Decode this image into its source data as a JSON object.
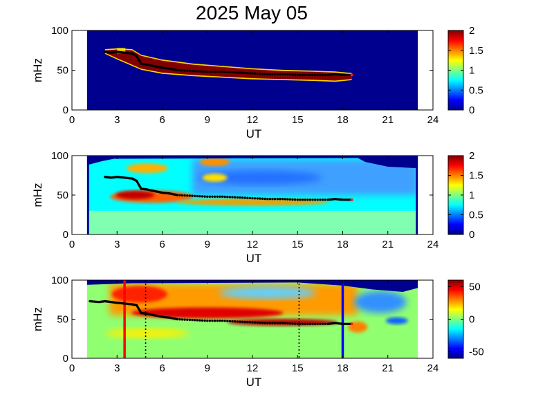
{
  "figure": {
    "title": "2025 May 05"
  },
  "chart_data": [
    {
      "type": "heatmap",
      "panel": "top",
      "xlabel": "UT",
      "ylabel": "mHz",
      "xlim": [
        0,
        24
      ],
      "ylim": [
        0,
        100
      ],
      "xticks": [
        "0",
        "3",
        "6",
        "9",
        "12",
        "15",
        "18",
        "21",
        "24"
      ],
      "yticks": [
        "0",
        "50",
        "100"
      ],
      "data_x_range": [
        1.0,
        23.0
      ],
      "colorbar": {
        "range": [
          0,
          2
        ],
        "ticks": [
          "0",
          "0.5",
          "1",
          "1.5",
          "2"
        ]
      },
      "band": {
        "description_points_x": [
          2.2,
          3.0,
          4.0,
          4.6,
          6.0,
          8.0,
          10.0,
          12.0,
          14.0,
          16.0,
          17.5,
          18.6
        ],
        "upper": [
          75,
          76,
          75,
          68,
          62,
          57,
          54,
          51,
          49,
          48,
          47,
          45
        ],
        "lower": [
          72,
          65,
          57,
          52,
          47,
          44,
          42,
          40,
          39,
          38,
          37,
          39
        ]
      },
      "trace": {
        "x": [
          2.2,
          2.6,
          3.0,
          3.5,
          4.0,
          4.3,
          4.6,
          5.0,
          5.5,
          6.0,
          6.5,
          7.0,
          8.0,
          9.0,
          10.0,
          11.0,
          12.0,
          13.0,
          14.0,
          15.0,
          16.0,
          17.0,
          17.5,
          18.0,
          18.6
        ],
        "y": [
          73,
          72,
          73,
          72,
          71,
          68,
          58,
          57,
          55,
          53,
          52,
          50,
          49,
          48,
          48,
          47,
          46,
          45,
          45,
          44,
          44,
          44,
          45,
          44,
          44
        ]
      }
    },
    {
      "type": "heatmap",
      "panel": "middle",
      "xlabel": "UT",
      "ylabel": "mHz",
      "xlim": [
        0,
        24
      ],
      "ylim": [
        0,
        100
      ],
      "xticks": [
        "0",
        "3",
        "6",
        "9",
        "12",
        "15",
        "18",
        "21",
        "24"
      ],
      "yticks": [
        "0",
        "50",
        "100"
      ],
      "data_x_range": [
        1.0,
        23.0
      ],
      "colorbar": {
        "range": [
          0,
          2
        ],
        "ticks": [
          "0",
          "0.5",
          "1",
          "1.5",
          "2"
        ]
      },
      "trace": {
        "x": [
          2.2,
          2.6,
          3.0,
          3.5,
          4.0,
          4.3,
          4.6,
          5.0,
          5.5,
          6.0,
          6.5,
          7.0,
          8.0,
          9.0,
          10.0,
          11.0,
          12.0,
          13.0,
          14.0,
          15.0,
          16.0,
          17.0,
          17.5,
          18.0,
          18.6
        ],
        "y": [
          73,
          72,
          73,
          72,
          71,
          68,
          58,
          57,
          55,
          53,
          52,
          50,
          49,
          48,
          48,
          47,
          46,
          45,
          45,
          44,
          44,
          44,
          45,
          44,
          44
        ]
      }
    },
    {
      "type": "heatmap",
      "panel": "bottom",
      "xlabel": "UT",
      "ylabel": "mHz",
      "xlim": [
        0,
        24
      ],
      "ylim": [
        0,
        100
      ],
      "xticks": [
        "0",
        "3",
        "6",
        "9",
        "12",
        "15",
        "18",
        "21",
        "24"
      ],
      "yticks": [
        "0",
        "50",
        "100"
      ],
      "data_x_range": [
        1.0,
        23.0
      ],
      "colorbar": {
        "range": [
          -60,
          60
        ],
        "ticks": [
          "50",
          "0",
          "-50"
        ],
        "tick_values": [
          50,
          0,
          -50
        ]
      },
      "vertical_lines": [
        {
          "x": 3.5,
          "color": "#ff0000",
          "style": "solid"
        },
        {
          "x": 4.9,
          "color": "#000000",
          "style": "dotted"
        },
        {
          "x": 15.1,
          "color": "#000000",
          "style": "dotted"
        },
        {
          "x": 18.0,
          "color": "#0000ff",
          "style": "solid"
        }
      ],
      "trace": {
        "x": [
          1.2,
          1.8,
          2.2,
          2.6,
          3.0,
          3.5,
          4.0,
          4.3,
          4.6,
          5.0,
          5.5,
          6.0,
          6.5,
          7.0,
          8.0,
          9.0,
          10.0,
          11.0,
          12.0,
          13.0,
          14.0,
          15.0,
          16.0,
          17.0,
          17.5,
          18.0,
          18.6
        ],
        "y": [
          73,
          72,
          73,
          72,
          71,
          70,
          69,
          68,
          58,
          57,
          55,
          53,
          52,
          50,
          49,
          48,
          48,
          47,
          46,
          45,
          45,
          44,
          44,
          44,
          45,
          44,
          44
        ]
      }
    }
  ]
}
